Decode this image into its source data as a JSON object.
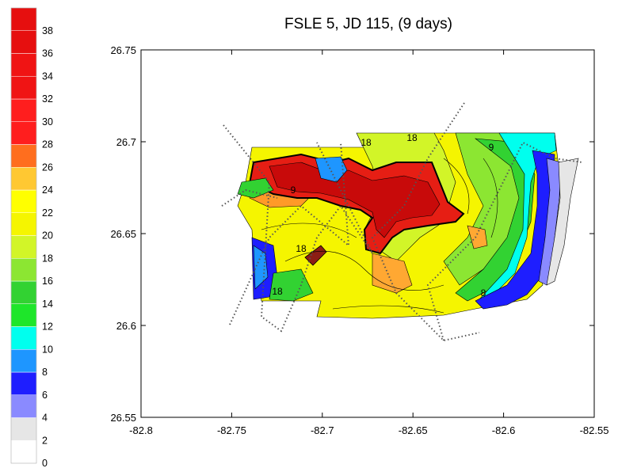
{
  "chart_data": {
    "type": "heatmap",
    "title": "FSLE 5, JD 115, (9 days)",
    "xlabel": "",
    "ylabel": "",
    "xlim": [
      -82.8,
      -82.55
    ],
    "ylim": [
      26.55,
      26.75
    ],
    "x_ticks": [
      -82.8,
      -82.75,
      -82.7,
      -82.65,
      -82.6,
      -82.55
    ],
    "x_tick_labels": [
      "-82.8",
      "-82.75",
      "-82.7",
      "-82.65",
      "-82.6",
      "-82.55"
    ],
    "y_ticks": [
      26.55,
      26.6,
      26.65,
      26.7,
      26.75
    ],
    "y_tick_labels": [
      "26.55",
      "26.6",
      "26.65",
      "26.7",
      "26.75"
    ],
    "grid": false,
    "legend_placement": "left",
    "colorbar": {
      "levels": [
        0,
        2,
        4,
        6,
        8,
        10,
        12,
        14,
        16,
        18,
        20,
        22,
        24,
        26,
        28,
        30,
        32,
        34,
        36,
        38
      ],
      "labels": [
        "0",
        "2",
        "4",
        "6",
        "8",
        "10",
        "12",
        "14",
        "16",
        "18",
        "20",
        "22",
        "24",
        "26",
        "28",
        "30",
        "32",
        "34",
        "36",
        "38"
      ],
      "colors": [
        "#ffffff",
        "#e6e6e6",
        "#8a8aff",
        "#1e1eff",
        "#1e96ff",
        "#00ffee",
        "#1ee62a",
        "#32d232",
        "#8ce632",
        "#d2f528",
        "#f5f500",
        "#ffff00",
        "#ffc832",
        "#ff6e1e",
        "#ff1e1e",
        "#ff1e1e",
        "#f01414",
        "#f01414",
        "#e60f0f",
        "#e60f0f"
      ]
    },
    "contour_labels": [
      "18",
      "18",
      "9",
      "9",
      "18",
      "18",
      "8"
    ]
  }
}
